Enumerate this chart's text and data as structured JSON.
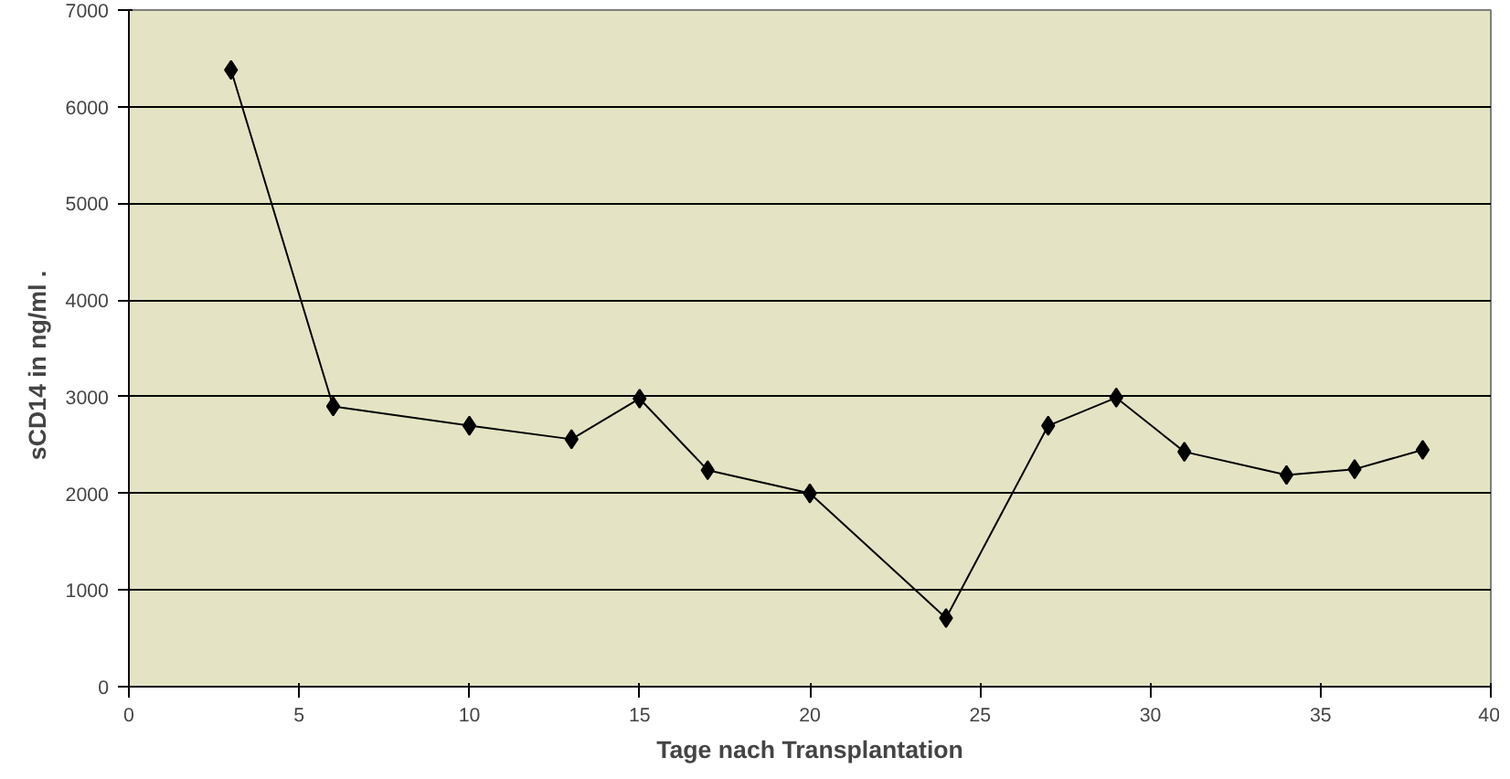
{
  "chart_data": {
    "type": "line",
    "xlabel": "Tage nach Transplantation",
    "ylabel": "sCD14 in ng/ml      .",
    "x": [
      3,
      6,
      10,
      13,
      15,
      17,
      20,
      24,
      27,
      29,
      31,
      34,
      36,
      38
    ],
    "series": [
      {
        "color": "#000000",
        "values": [
          6380,
          2900,
          2700,
          2560,
          2980,
          2240,
          2000,
          710,
          2700,
          2990,
          2430,
          2190,
          2250,
          2450
        ]
      }
    ],
    "xlim": [
      0,
      40
    ],
    "xticks": [
      0,
      5,
      10,
      15,
      20,
      25,
      30,
      35,
      40
    ],
    "ylim": [
      0,
      7000
    ],
    "yticks": [
      0,
      1000,
      2000,
      3000,
      4000,
      5000,
      6000,
      7000
    ],
    "grid": "y",
    "marker": "diamond",
    "line_style": "solid"
  }
}
